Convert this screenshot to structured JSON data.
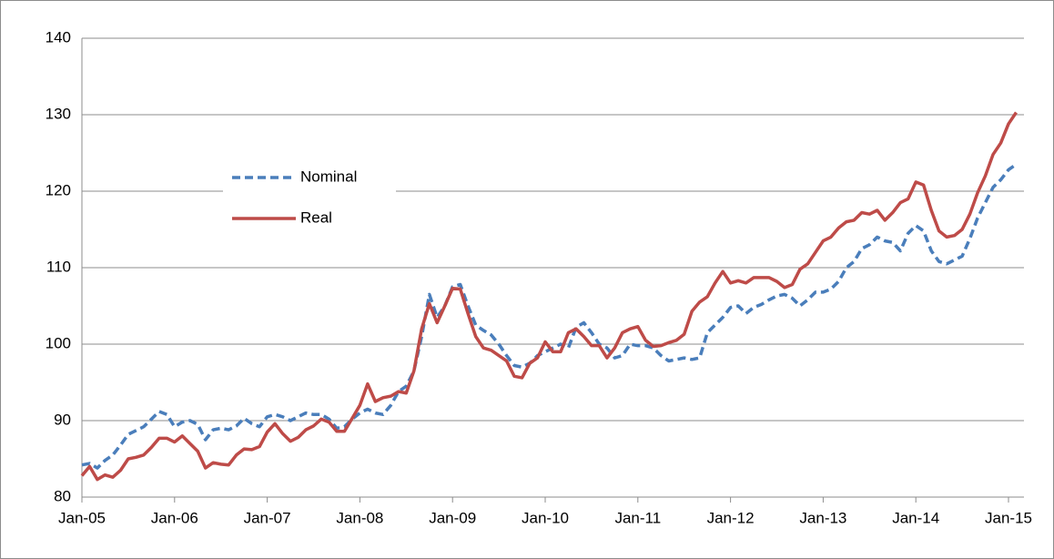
{
  "chart_data": {
    "type": "line",
    "categories": [
      "Jan-05",
      null,
      null,
      null,
      null,
      null,
      null,
      null,
      null,
      null,
      null,
      null,
      "Jan-06",
      null,
      null,
      null,
      null,
      null,
      null,
      null,
      null,
      null,
      null,
      null,
      "Jan-07",
      null,
      null,
      null,
      null,
      null,
      null,
      null,
      null,
      null,
      null,
      null,
      "Jan-08",
      null,
      null,
      null,
      null,
      null,
      null,
      null,
      null,
      null,
      null,
      null,
      "Jan-09",
      null,
      null,
      null,
      null,
      null,
      null,
      null,
      null,
      null,
      null,
      null,
      "Jan-10",
      null,
      null,
      null,
      null,
      null,
      null,
      null,
      null,
      null,
      null,
      null,
      "Jan-11",
      null,
      null,
      null,
      null,
      null,
      null,
      null,
      null,
      null,
      null,
      null,
      "Jan-12",
      null,
      null,
      null,
      null,
      null,
      null,
      null,
      null,
      null,
      null,
      null,
      "Jan-13",
      null,
      null,
      null,
      null,
      null,
      null,
      null,
      null,
      null,
      null,
      null,
      "Jan-14",
      null,
      null,
      null,
      null,
      null,
      null,
      null,
      null,
      null,
      null,
      null,
      "Jan-15",
      null
    ],
    "series": [
      {
        "name": "Nominal",
        "color": "#4a7ebb",
        "dashed": true,
        "values": [
          84.2,
          84.4,
          83.8,
          84.8,
          85.5,
          86.8,
          88.2,
          88.7,
          89.2,
          90.2,
          91.2,
          90.8,
          89.2,
          89.8,
          90.0,
          89.5,
          87.5,
          88.8,
          89.0,
          88.8,
          89.3,
          90.3,
          89.6,
          89.2,
          90.5,
          90.8,
          90.5,
          90.0,
          90.5,
          91.0,
          90.8,
          90.8,
          90.2,
          89.0,
          89.2,
          90.2,
          91.0,
          91.5,
          91.0,
          90.8,
          92.0,
          93.8,
          94.5,
          96.5,
          101.0,
          106.5,
          103.5,
          105.0,
          107.5,
          107.8,
          105.0,
          102.5,
          101.8,
          101.2,
          100.0,
          98.5,
          97.2,
          97.0,
          97.5,
          98.5,
          99.0,
          99.5,
          100.0,
          99.5,
          102.2,
          102.8,
          101.5,
          100.0,
          99.5,
          98.2,
          98.5,
          100.0,
          99.8,
          99.8,
          99.5,
          98.5,
          97.8,
          98.0,
          98.2,
          98.0,
          98.2,
          101.5,
          102.5,
          103.5,
          104.8,
          105.0,
          104.0,
          104.8,
          105.2,
          105.8,
          106.3,
          106.5,
          106.0,
          105.0,
          105.8,
          106.8,
          106.8,
          107.2,
          108.2,
          110.0,
          110.8,
          112.5,
          113.0,
          114.0,
          113.5,
          113.3,
          112.2,
          114.5,
          115.5,
          114.8,
          112.2,
          110.8,
          110.5,
          111.0,
          111.5,
          113.8,
          116.5,
          118.5,
          120.5,
          121.5,
          122.8,
          123.5
        ]
      },
      {
        "name": "Real",
        "color": "#be4b48",
        "dashed": false,
        "values": [
          82.8,
          84.0,
          82.3,
          82.9,
          82.6,
          83.5,
          85.0,
          85.2,
          85.5,
          86.5,
          87.7,
          87.7,
          87.2,
          88.0,
          87.0,
          86.0,
          83.8,
          84.5,
          84.3,
          84.2,
          85.5,
          86.3,
          86.2,
          86.6,
          88.5,
          89.6,
          88.3,
          87.3,
          87.8,
          88.8,
          89.3,
          90.2,
          89.8,
          88.6,
          88.6,
          90.3,
          92.0,
          94.8,
          92.5,
          93.0,
          93.2,
          93.8,
          93.6,
          96.5,
          102.0,
          105.3,
          102.8,
          105.0,
          107.3,
          107.2,
          104.0,
          101.0,
          99.5,
          99.2,
          98.5,
          97.8,
          95.8,
          95.6,
          97.5,
          98.2,
          100.3,
          99.0,
          99.0,
          101.5,
          102.0,
          101.0,
          99.8,
          99.8,
          98.2,
          99.5,
          101.5,
          102.0,
          102.3,
          100.5,
          99.7,
          99.8,
          100.2,
          100.5,
          101.3,
          104.3,
          105.5,
          106.2,
          108.0,
          109.5,
          108.0,
          108.3,
          108.0,
          108.7,
          108.7,
          108.7,
          108.2,
          107.4,
          107.8,
          109.8,
          110.5,
          112.0,
          113.5,
          114.0,
          115.2,
          116.0,
          116.2,
          117.2,
          117.0,
          117.5,
          116.2,
          117.2,
          118.5,
          119.0,
          121.2,
          120.8,
          117.5,
          114.8,
          114.0,
          114.2,
          115.0,
          117.0,
          119.8,
          122.0,
          124.8,
          126.3,
          128.8,
          130.3
        ]
      }
    ],
    "ylim": [
      80,
      140
    ],
    "yticks": [
      80,
      90,
      100,
      110,
      120,
      130,
      140
    ],
    "grid": true,
    "legend": "upper left"
  }
}
